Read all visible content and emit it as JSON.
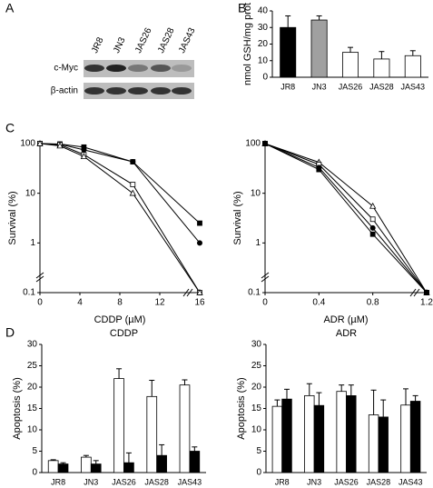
{
  "panel_labels": [
    "A",
    "B",
    "C",
    "D"
  ],
  "blot": {
    "lanes": [
      "JR8",
      "JN3",
      "JAS26",
      "JAS28",
      "JAS43"
    ],
    "rows": [
      "c-Myc",
      "β-actin"
    ]
  },
  "chart_data": [
    {
      "type": "bar",
      "y_label": "nmol GSH/mg prot",
      "categories": [
        "JR8",
        "JN3",
        "JAS26",
        "JAS28",
        "JAS43"
      ],
      "values": [
        30,
        34.5,
        15,
        11,
        13
      ],
      "errors": [
        7,
        2.5,
        3,
        4.5,
        3
      ],
      "colors": [
        "#000000",
        "#a0a0a0",
        "#ffffff",
        "#ffffff",
        "#ffffff"
      ],
      "ylim": [
        0,
        40
      ],
      "yticks": [
        0,
        10,
        20,
        30,
        40
      ]
    },
    {
      "type": "line",
      "x_label": "CDDP (µM)",
      "y_label": "Survival (%)",
      "log_y": true,
      "x": [
        0,
        2,
        4.4,
        9.3,
        16
      ],
      "xlim": [
        0,
        16
      ],
      "xticks": [
        0,
        4,
        8,
        12,
        16
      ],
      "ylim": [
        0.1,
        100
      ],
      "yticks": [
        0.1,
        1,
        10,
        100
      ],
      "series": [
        {
          "marker": "square",
          "color": "#000000",
          "values": [
            100,
            98,
            85,
            43,
            2.5
          ]
        },
        {
          "marker": "circle",
          "color": "#000000",
          "values": [
            100,
            97,
            75,
            43,
            1
          ]
        },
        {
          "marker": "square",
          "color": "#ffffff",
          "values": [
            100,
            95,
            60,
            15,
            0.1
          ]
        },
        {
          "marker": "triangle",
          "color": "#ffffff",
          "values": [
            100,
            90,
            55,
            10,
            0.1
          ]
        }
      ]
    },
    {
      "type": "line",
      "x_label": "ADR (µM)",
      "y_label": "Survival (%)",
      "log_y": true,
      "x": [
        0,
        0.4,
        0.8,
        1.2
      ],
      "xlim": [
        0,
        1.2
      ],
      "xticks": [
        0,
        0.4,
        0.8,
        1.2
      ],
      "ylim": [
        0.1,
        100
      ],
      "yticks": [
        0.1,
        1,
        10,
        100
      ],
      "series": [
        {
          "marker": "triangle",
          "color": "#ffffff",
          "values": [
            100,
            42,
            5.5,
            0.1
          ]
        },
        {
          "marker": "square",
          "color": "#ffffff",
          "values": [
            100,
            38,
            3,
            0.1
          ]
        },
        {
          "marker": "circle",
          "color": "#000000",
          "values": [
            100,
            33,
            2,
            0.1
          ]
        },
        {
          "marker": "square",
          "color": "#000000",
          "values": [
            100,
            30,
            1.5,
            0.1
          ]
        }
      ]
    },
    {
      "type": "bar",
      "title": "CDDP",
      "y_label": "Apoptosis (%)",
      "categories": [
        "JR8",
        "JN3",
        "JAS26",
        "JAS28",
        "JAS43"
      ],
      "series": [
        {
          "color": "#ffffff",
          "values": [
            2.8,
            3.6,
            22,
            17.8,
            20.5
          ],
          "errors": [
            0.2,
            0.4,
            2.3,
            3.8,
            1.2
          ]
        },
        {
          "color": "#000000",
          "values": [
            2,
            2,
            2.3,
            4,
            5
          ],
          "errors": [
            0.3,
            0.8,
            2.3,
            2.5,
            1
          ]
        }
      ],
      "ylim": [
        0,
        30
      ],
      "yticks": [
        0,
        5,
        10,
        15,
        20,
        25,
        30
      ]
    },
    {
      "type": "bar",
      "title": "ADR",
      "y_label": "Apoptosis (%)",
      "categories": [
        "JR8",
        "JN3",
        "JAS26",
        "JAS28",
        "JAS43"
      ],
      "series": [
        {
          "color": "#ffffff",
          "values": [
            15.5,
            18,
            19,
            13.5,
            15.8
          ],
          "errors": [
            1.5,
            2.8,
            1.5,
            5.8,
            3.8
          ]
        },
        {
          "color": "#000000",
          "values": [
            17.2,
            15.7,
            18,
            13,
            16.7
          ],
          "errors": [
            2.3,
            3,
            2.5,
            4,
            1.3
          ]
        }
      ],
      "ylim": [
        0,
        30
      ],
      "yticks": [
        0,
        5,
        10,
        15,
        20,
        25,
        30
      ]
    }
  ]
}
